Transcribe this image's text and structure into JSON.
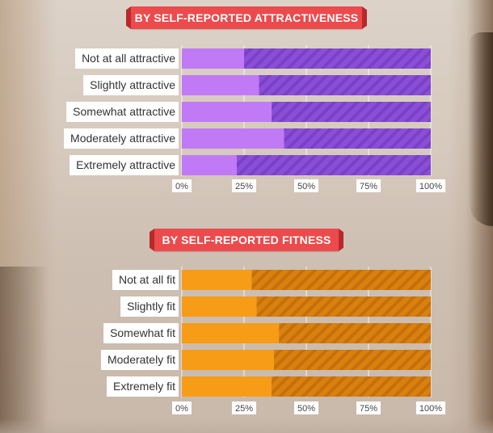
{
  "chart_data": [
    {
      "type": "bar",
      "stacked_percent": true,
      "title": "BY SELF-REPORTED ATTRACTIVENESS",
      "categories": [
        "Not at all attractive",
        "Slightly attractive",
        "Somewhat attractive",
        "Moderately attractive",
        "Extremely attractive"
      ],
      "values": [
        25,
        31,
        36,
        41,
        22
      ],
      "xlim": [
        0,
        100
      ],
      "ticks": [
        "0%",
        "25%",
        "50%",
        "75%",
        "100%"
      ],
      "colors": {
        "solid": "#c07af5",
        "hatched": "#8a4fd6",
        "stripe": "#7a40c6"
      }
    },
    {
      "type": "bar",
      "stacked_percent": true,
      "title": "BY SELF-REPORTED FITNESS",
      "categories": [
        "Not at all fit",
        "Slightly fit",
        "Somewhat fit",
        "Moderately fit",
        "Extremely fit"
      ],
      "values": [
        28,
        30,
        39,
        37,
        36
      ],
      "xlim": [
        0,
        100
      ],
      "ticks": [
        "0%",
        "25%",
        "50%",
        "75%",
        "100%"
      ],
      "colors": {
        "solid": "#f79c16",
        "hatched": "#d9800e",
        "stripe": "#c4700a"
      }
    }
  ]
}
